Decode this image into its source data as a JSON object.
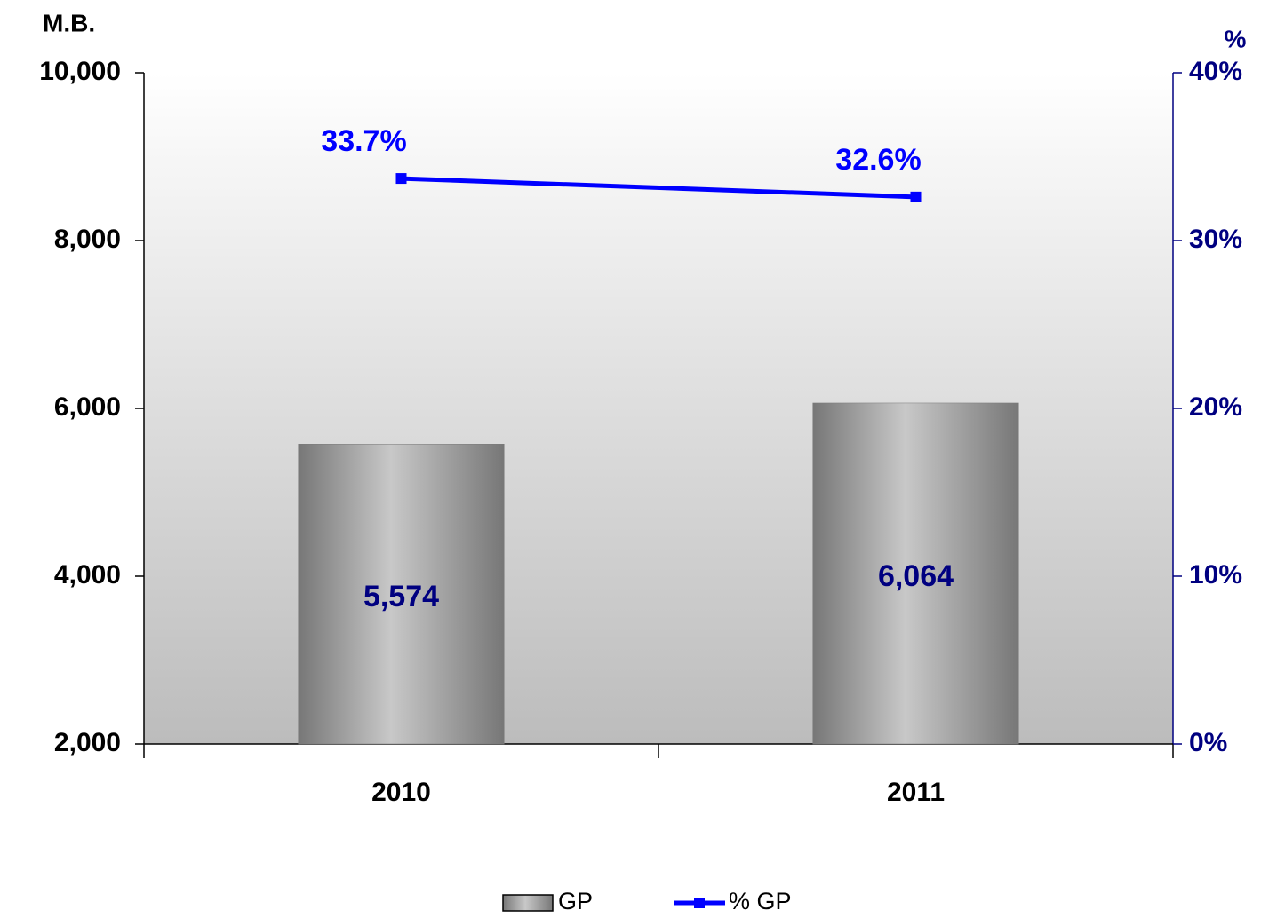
{
  "chart_data": {
    "type": "bar",
    "y_axis_title": "M.B.",
    "y2_axis_title": "%",
    "categories": [
      "2010",
      "2011"
    ],
    "series": [
      {
        "name": "GP",
        "color": "#7a7a7a",
        "values": [
          5574,
          6064
        ],
        "value_labels": [
          "5,574",
          "6,064"
        ]
      },
      {
        "name": "% GP",
        "type": "line",
        "axis": "y2",
        "color": "#0000ff",
        "values": [
          33.7,
          32.6
        ],
        "value_labels": [
          "33.7%",
          "32.6%"
        ]
      }
    ],
    "ylim": [
      2000,
      10000
    ],
    "yticks": [
      {
        "value": 2000,
        "label": "2,000"
      },
      {
        "value": 4000,
        "label": "4,000"
      },
      {
        "value": 6000,
        "label": "6,000"
      },
      {
        "value": 8000,
        "label": "8,000"
      },
      {
        "value": 10000,
        "label": "10,000"
      }
    ],
    "y2lim": [
      0,
      40
    ],
    "y2ticks": [
      {
        "value": 0,
        "label": "0%"
      },
      {
        "value": 10,
        "label": "10%"
      },
      {
        "value": 20,
        "label": "20%"
      },
      {
        "value": 30,
        "label": "30%"
      },
      {
        "value": 40,
        "label": "40%"
      }
    ],
    "legend": "bottom"
  }
}
